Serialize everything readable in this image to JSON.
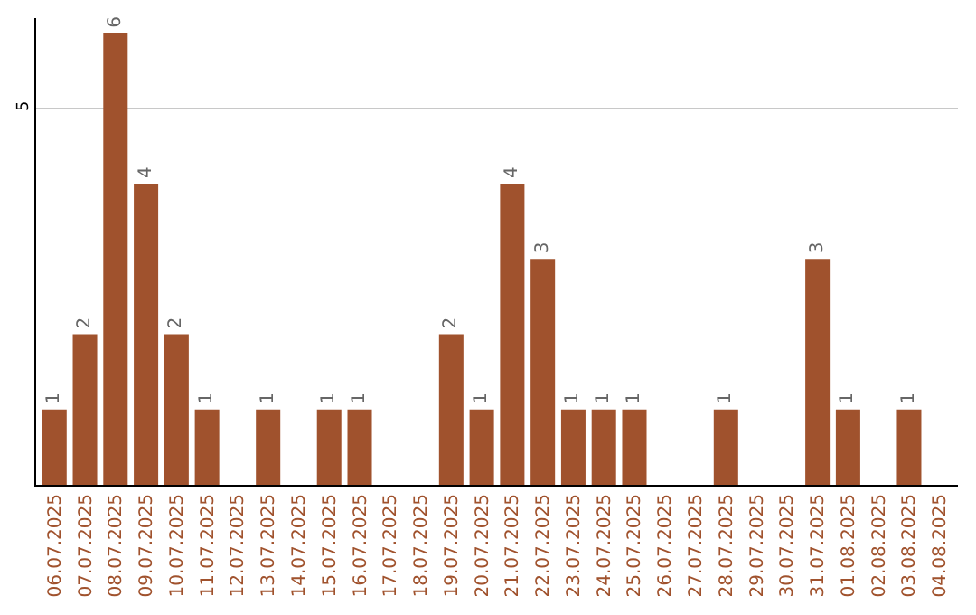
{
  "chart_data": {
    "type": "bar",
    "categories": [
      "06.07.2025",
      "07.07.2025",
      "08.07.2025",
      "09.07.2025",
      "10.07.2025",
      "11.07.2025",
      "12.07.2025",
      "13.07.2025",
      "14.07.2025",
      "15.07.2025",
      "16.07.2025",
      "17.07.2025",
      "18.07.2025",
      "19.07.2025",
      "20.07.2025",
      "21.07.2025",
      "22.07.2025",
      "23.07.2025",
      "24.07.2025",
      "25.07.2025",
      "26.07.2025",
      "27.07.2025",
      "28.07.2025",
      "29.07.2025",
      "30.07.2025",
      "31.07.2025",
      "01.08.2025",
      "02.08.2025",
      "03.08.2025",
      "04.08.2025"
    ],
    "values": [
      1,
      2,
      6,
      4,
      2,
      1,
      null,
      1,
      null,
      1,
      1,
      null,
      null,
      2,
      1,
      4,
      3,
      1,
      1,
      1,
      null,
      null,
      1,
      null,
      null,
      3,
      1,
      null,
      1,
      null
    ],
    "color": "#a0522d",
    "ylim": [
      0,
      6.2
    ],
    "yticks": [
      5
    ],
    "grid": "y",
    "data_labels": true
  }
}
